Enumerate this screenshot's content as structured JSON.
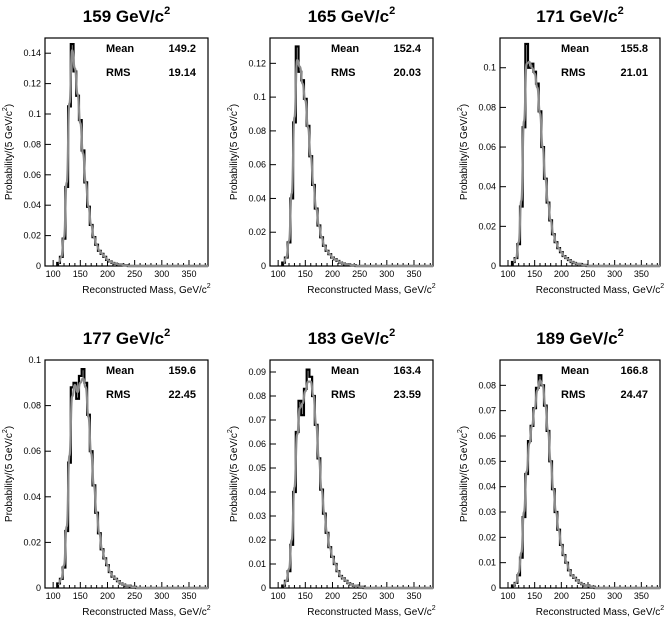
{
  "chart_data": [
    {
      "type": "line",
      "title": "159 GeV/c",
      "title_sup": "2",
      "xlabel": "Reconstructed Mass, GeV/c",
      "xlabel_sup": "2",
      "ylabel": "Probability/(5 GeV/c",
      "ylabel_sup": "2",
      "ylabel_end": ")",
      "xlim": [
        85,
        385
      ],
      "ylim": [
        0,
        0.15
      ],
      "xticks": [
        100,
        150,
        200,
        250,
        300,
        350
      ],
      "xtick_labels": [
        "100",
        "150",
        "200",
        "250",
        "300",
        "350"
      ],
      "yticks": [
        0,
        0.02,
        0.04,
        0.06,
        0.08,
        0.1,
        0.12,
        0.14
      ],
      "ytick_labels": [
        "0",
        "0.02",
        "0.04",
        "0.06",
        "0.08",
        "0.1",
        "0.12",
        "0.14"
      ],
      "stats": [
        {
          "label": "Mean",
          "value": "149.2"
        },
        {
          "label": "RMS",
          "value": "19.14"
        }
      ],
      "x": [
        110,
        115,
        120,
        125,
        130,
        135,
        140,
        145,
        150,
        155,
        160,
        165,
        170,
        175,
        180,
        185,
        190,
        195,
        200,
        205,
        210,
        215,
        220,
        225,
        230,
        235,
        240
      ],
      "series": [
        {
          "style": "histogram",
          "values": [
            0.002,
            0.006,
            0.018,
            0.052,
            0.105,
            0.146,
            0.128,
            0.112,
            0.096,
            0.076,
            0.055,
            0.039,
            0.027,
            0.019,
            0.014,
            0.01,
            0.008,
            0.006,
            0.004,
            0.003,
            0.002,
            0.0015,
            0.001,
            0.001,
            0.0005,
            0.0005,
            0
          ]
        },
        {
          "style": "fit",
          "values": [
            0.002,
            0.006,
            0.019,
            0.055,
            0.107,
            0.142,
            0.13,
            0.113,
            0.094,
            0.074,
            0.055,
            0.039,
            0.027,
            0.019,
            0.014,
            0.01,
            0.008,
            0.006,
            0.004,
            0.003,
            0.002,
            0.0015,
            0.001,
            0.001,
            0.0005,
            0.0005,
            0
          ]
        }
      ]
    },
    {
      "type": "line",
      "title": "165 GeV/c",
      "title_sup": "2",
      "xlabel": "Reconstructed Mass, GeV/c",
      "xlabel_sup": "2",
      "ylabel": "Probability/(5 GeV/c",
      "ylabel_sup": "2",
      "ylabel_end": ")",
      "xlim": [
        85,
        385
      ],
      "ylim": [
        0,
        0.135
      ],
      "xticks": [
        100,
        150,
        200,
        250,
        300,
        350
      ],
      "xtick_labels": [
        "100",
        "150",
        "200",
        "250",
        "300",
        "350"
      ],
      "yticks": [
        0,
        0.02,
        0.04,
        0.06,
        0.08,
        0.1,
        0.12
      ],
      "ytick_labels": [
        "0",
        "0.02",
        "0.04",
        "0.06",
        "0.08",
        "0.1",
        "0.12"
      ],
      "stats": [
        {
          "label": "Mean",
          "value": "152.4"
        },
        {
          "label": "RMS",
          "value": "20.03"
        }
      ],
      "x": [
        110,
        115,
        120,
        125,
        130,
        135,
        140,
        145,
        150,
        155,
        160,
        165,
        170,
        175,
        180,
        185,
        190,
        195,
        200,
        205,
        210,
        215,
        220,
        225,
        230,
        235,
        240,
        245
      ],
      "series": [
        {
          "style": "histogram",
          "values": [
            0.002,
            0.005,
            0.014,
            0.04,
            0.085,
            0.13,
            0.115,
            0.11,
            0.099,
            0.083,
            0.065,
            0.048,
            0.034,
            0.024,
            0.017,
            0.012,
            0.009,
            0.007,
            0.005,
            0.004,
            0.003,
            0.002,
            0.0015,
            0.001,
            0.001,
            0.0005,
            0.0005,
            0
          ]
        },
        {
          "style": "fit",
          "values": [
            0.002,
            0.005,
            0.015,
            0.043,
            0.088,
            0.122,
            0.118,
            0.108,
            0.098,
            0.082,
            0.065,
            0.048,
            0.034,
            0.024,
            0.017,
            0.012,
            0.009,
            0.007,
            0.005,
            0.004,
            0.003,
            0.002,
            0.0015,
            0.001,
            0.001,
            0.0005,
            0.0005,
            0
          ]
        }
      ]
    },
    {
      "type": "line",
      "title": "171 GeV/c",
      "title_sup": "2",
      "xlabel": "Reconstructed Mass, GeV/c",
      "xlabel_sup": "2",
      "ylabel": "Probability/(5 GeV/c",
      "ylabel_sup": "2",
      "ylabel_end": ")",
      "xlim": [
        85,
        385
      ],
      "ylim": [
        0,
        0.115
      ],
      "xticks": [
        100,
        150,
        200,
        250,
        300,
        350
      ],
      "xtick_labels": [
        "100",
        "150",
        "200",
        "250",
        "300",
        "350"
      ],
      "yticks": [
        0,
        0.02,
        0.04,
        0.06,
        0.08,
        0.1
      ],
      "ytick_labels": [
        "0",
        "0.02",
        "0.04",
        "0.06",
        "0.08",
        "0.1"
      ],
      "stats": [
        {
          "label": "Mean",
          "value": "155.8"
        },
        {
          "label": "RMS",
          "value": "21.01"
        }
      ],
      "x": [
        110,
        115,
        120,
        125,
        130,
        135,
        140,
        145,
        150,
        155,
        160,
        165,
        170,
        175,
        180,
        185,
        190,
        195,
        200,
        205,
        210,
        215,
        220,
        225,
        230,
        235,
        240,
        245,
        250
      ],
      "series": [
        {
          "style": "histogram",
          "values": [
            0.002,
            0.004,
            0.011,
            0.03,
            0.07,
            0.112,
            0.1,
            0.102,
            0.098,
            0.092,
            0.078,
            0.06,
            0.044,
            0.032,
            0.023,
            0.016,
            0.012,
            0.009,
            0.007,
            0.005,
            0.004,
            0.003,
            0.002,
            0.0015,
            0.001,
            0.001,
            0.0005,
            0.0005,
            0
          ]
        },
        {
          "style": "fit",
          "values": [
            0.002,
            0.004,
            0.012,
            0.033,
            0.073,
            0.102,
            0.103,
            0.1,
            0.097,
            0.09,
            0.077,
            0.06,
            0.044,
            0.032,
            0.023,
            0.016,
            0.012,
            0.009,
            0.007,
            0.005,
            0.004,
            0.003,
            0.002,
            0.0015,
            0.001,
            0.001,
            0.0005,
            0.0005,
            0
          ]
        }
      ]
    },
    {
      "type": "line",
      "title": "177 GeV/c",
      "title_sup": "2",
      "xlabel": "Reconstructed Mass, GeV/c",
      "xlabel_sup": "2",
      "ylabel": "Probability/(5 GeV/c",
      "ylabel_sup": "2",
      "ylabel_end": ")",
      "xlim": [
        85,
        385
      ],
      "ylim": [
        0,
        0.1
      ],
      "xticks": [
        100,
        150,
        200,
        250,
        300,
        350
      ],
      "xtick_labels": [
        "100",
        "150",
        "200",
        "250",
        "300",
        "350"
      ],
      "yticks": [
        0,
        0.02,
        0.04,
        0.06,
        0.08,
        0.1
      ],
      "ytick_labels": [
        "0",
        "0.02",
        "0.04",
        "0.06",
        "0.08",
        "0.1"
      ],
      "stats": [
        {
          "label": "Mean",
          "value": "159.6"
        },
        {
          "label": "RMS",
          "value": "22.45"
        }
      ],
      "x": [
        110,
        115,
        120,
        125,
        130,
        135,
        140,
        145,
        150,
        155,
        160,
        165,
        170,
        175,
        180,
        185,
        190,
        195,
        200,
        205,
        210,
        215,
        220,
        225,
        230,
        235,
        240,
        245,
        250,
        255
      ],
      "series": [
        {
          "style": "histogram",
          "values": [
            0.002,
            0.004,
            0.009,
            0.025,
            0.055,
            0.088,
            0.09,
            0.083,
            0.093,
            0.096,
            0.09,
            0.076,
            0.06,
            0.045,
            0.033,
            0.024,
            0.017,
            0.013,
            0.01,
            0.007,
            0.005,
            0.004,
            0.003,
            0.002,
            0.0015,
            0.001,
            0.001,
            0.0005,
            0.0005,
            0
          ]
        },
        {
          "style": "fit",
          "values": [
            0.002,
            0.004,
            0.01,
            0.027,
            0.058,
            0.084,
            0.089,
            0.086,
            0.09,
            0.092,
            0.088,
            0.075,
            0.059,
            0.045,
            0.033,
            0.024,
            0.017,
            0.013,
            0.01,
            0.007,
            0.005,
            0.004,
            0.003,
            0.002,
            0.0015,
            0.001,
            0.001,
            0.0005,
            0.0005,
            0
          ]
        }
      ]
    },
    {
      "type": "line",
      "title": "183 GeV/c",
      "title_sup": "2",
      "xlabel": "Reconstructed Mass, GeV/c",
      "xlabel_sup": "2",
      "ylabel": "Probability/(5 GeV/c",
      "ylabel_sup": "2",
      "ylabel_end": ")",
      "xlim": [
        85,
        385
      ],
      "ylim": [
        0,
        0.095
      ],
      "xticks": [
        100,
        150,
        200,
        250,
        300,
        350
      ],
      "xtick_labels": [
        "100",
        "150",
        "200",
        "250",
        "300",
        "350"
      ],
      "yticks": [
        0,
        0.01,
        0.02,
        0.03,
        0.04,
        0.05,
        0.06,
        0.07,
        0.08,
        0.09
      ],
      "ytick_labels": [
        "0",
        "0.01",
        "0.02",
        "0.03",
        "0.04",
        "0.05",
        "0.06",
        "0.07",
        "0.08",
        "0.09"
      ],
      "stats": [
        {
          "label": "Mean",
          "value": "163.4"
        },
        {
          "label": "RMS",
          "value": "23.59"
        }
      ],
      "x": [
        110,
        115,
        120,
        125,
        130,
        135,
        140,
        145,
        150,
        155,
        160,
        165,
        170,
        175,
        180,
        185,
        190,
        195,
        200,
        205,
        210,
        215,
        220,
        225,
        230,
        235,
        240,
        245,
        250,
        255,
        260
      ],
      "series": [
        {
          "style": "histogram",
          "values": [
            0.001,
            0.003,
            0.007,
            0.018,
            0.04,
            0.065,
            0.078,
            0.072,
            0.083,
            0.091,
            0.088,
            0.08,
            0.068,
            0.054,
            0.041,
            0.031,
            0.023,
            0.017,
            0.013,
            0.01,
            0.007,
            0.005,
            0.004,
            0.003,
            0.002,
            0.0015,
            0.001,
            0.001,
            0.0005,
            0.0005,
            0
          ]
        },
        {
          "style": "fit",
          "values": [
            0.001,
            0.003,
            0.008,
            0.02,
            0.042,
            0.064,
            0.075,
            0.077,
            0.082,
            0.086,
            0.086,
            0.08,
            0.068,
            0.054,
            0.041,
            0.031,
            0.023,
            0.017,
            0.013,
            0.01,
            0.007,
            0.005,
            0.004,
            0.003,
            0.002,
            0.0015,
            0.001,
            0.001,
            0.0005,
            0.0005,
            0
          ]
        }
      ]
    },
    {
      "type": "line",
      "title": "189 GeV/c",
      "title_sup": "2",
      "xlabel": "Reconstructed Mass, GeV/c",
      "xlabel_sup": "2",
      "ylabel": "Probability/(5 GeV/c",
      "ylabel_sup": "2",
      "ylabel_end": ")",
      "xlim": [
        85,
        385
      ],
      "ylim": [
        0,
        0.09
      ],
      "xticks": [
        100,
        150,
        200,
        250,
        300,
        350
      ],
      "xtick_labels": [
        "100",
        "150",
        "200",
        "250",
        "300",
        "350"
      ],
      "yticks": [
        0,
        0.01,
        0.02,
        0.03,
        0.04,
        0.05,
        0.06,
        0.07,
        0.08
      ],
      "ytick_labels": [
        "0",
        "0.01",
        "0.02",
        "0.03",
        "0.04",
        "0.05",
        "0.06",
        "0.07",
        "0.08"
      ],
      "stats": [
        {
          "label": "Mean",
          "value": "166.8"
        },
        {
          "label": "RMS",
          "value": "24.47"
        }
      ],
      "x": [
        110,
        115,
        120,
        125,
        130,
        135,
        140,
        145,
        150,
        155,
        160,
        165,
        170,
        175,
        180,
        185,
        190,
        195,
        200,
        205,
        210,
        215,
        220,
        225,
        230,
        235,
        240,
        245,
        250,
        255,
        260,
        265
      ],
      "series": [
        {
          "style": "histogram",
          "values": [
            0.001,
            0.002,
            0.005,
            0.012,
            0.028,
            0.045,
            0.058,
            0.064,
            0.071,
            0.079,
            0.084,
            0.08,
            0.072,
            0.062,
            0.05,
            0.039,
            0.03,
            0.023,
            0.017,
            0.013,
            0.01,
            0.007,
            0.005,
            0.004,
            0.003,
            0.002,
            0.0015,
            0.001,
            0.001,
            0.0005,
            0.0005,
            0
          ]
        },
        {
          "style": "fit",
          "values": [
            0.001,
            0.002,
            0.006,
            0.014,
            0.03,
            0.046,
            0.057,
            0.064,
            0.071,
            0.078,
            0.082,
            0.08,
            0.072,
            0.062,
            0.05,
            0.039,
            0.03,
            0.023,
            0.017,
            0.013,
            0.01,
            0.007,
            0.005,
            0.004,
            0.003,
            0.002,
            0.0015,
            0.001,
            0.001,
            0.0005,
            0.0005,
            0
          ]
        }
      ]
    }
  ]
}
